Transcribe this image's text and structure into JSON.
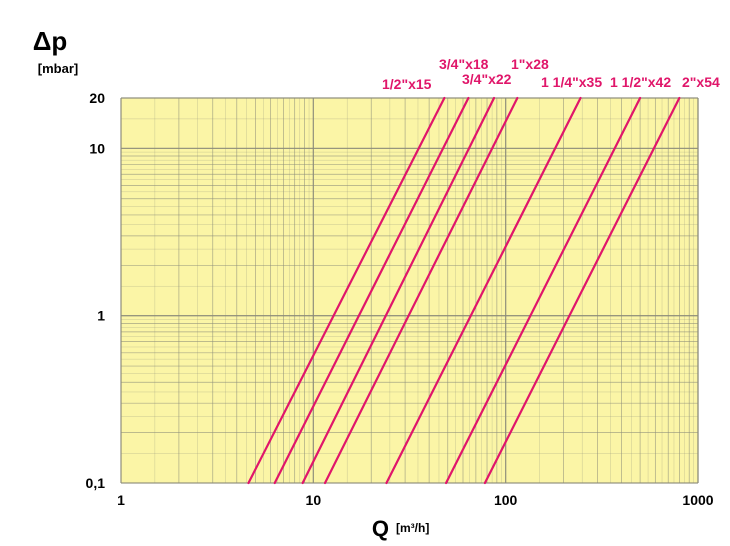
{
  "chart_data": {
    "type": "line",
    "title": "",
    "ylabel": {
      "symbol": "Δp",
      "unit": "[mbar]"
    },
    "xlabel": {
      "symbol": "Q",
      "unit": "[m³/h]"
    },
    "x_scale": "log",
    "y_scale": "log",
    "xlim": [
      1,
      1000
    ],
    "ylim": [
      0.1,
      20
    ],
    "x_ticks": [
      {
        "value": 1,
        "label": "1"
      },
      {
        "value": 10,
        "label": "10"
      },
      {
        "value": 100,
        "label": "100"
      },
      {
        "value": 1000,
        "label": "1000"
      }
    ],
    "y_ticks": [
      {
        "value": 0.1,
        "label": "0,1"
      },
      {
        "value": 1,
        "label": "1"
      },
      {
        "value": 10,
        "label": "10"
      },
      {
        "value": 20,
        "label": "20"
      }
    ],
    "grid": true,
    "colors": {
      "background": "#fbf5a6",
      "grid": "#8c8c7a",
      "line": "#e0166a",
      "label": "#e0166a"
    },
    "series": [
      {
        "name": "1/2\"x15",
        "x": [
          4.6,
          48
        ],
        "y": [
          0.1,
          20
        ]
      },
      {
        "name": "3/4\"x18",
        "x": [
          6.3,
          64
        ],
        "y": [
          0.1,
          20
        ]
      },
      {
        "name": "3/4\"x22",
        "x": [
          8.8,
          87
        ],
        "y": [
          0.1,
          20
        ]
      },
      {
        "name": "1\"x28",
        "x": [
          11.5,
          115
        ],
        "y": [
          0.1,
          20
        ]
      },
      {
        "name": "1 1/4\"x35",
        "x": [
          24,
          245
        ],
        "y": [
          0.1,
          20
        ]
      },
      {
        "name": "1 1/2\"x42",
        "x": [
          49,
          500
        ],
        "y": [
          0.1,
          20
        ]
      },
      {
        "name": "2\"x54",
        "x": [
          78,
          800
        ],
        "y": [
          0.1,
          20
        ]
      }
    ]
  }
}
